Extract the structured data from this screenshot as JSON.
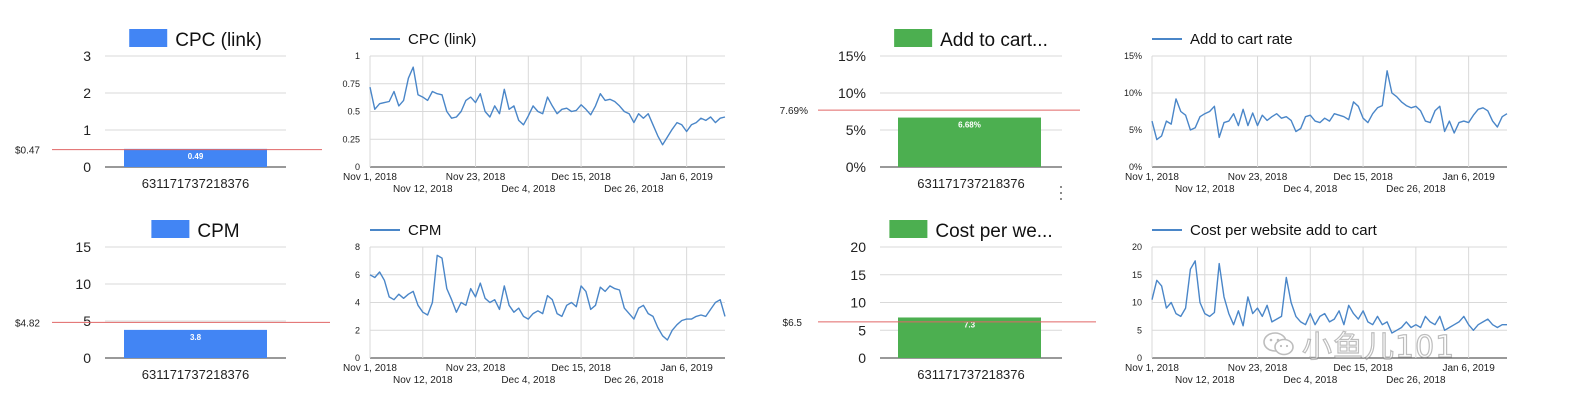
{
  "colors": {
    "blue": "#4285f4",
    "green": "#4caf50",
    "line": "#4a86c8",
    "ref": "#e06666",
    "grid": "#d9d9d9",
    "axis": "#333333"
  },
  "watermark": "小鱼儿101",
  "date_ticks": [
    "Nov 1, 2018",
    "Nov 12, 2018",
    "Nov 23, 2018",
    "Dec 4, 2018",
    "Dec 15, 2018",
    "Dec 26, 2018",
    "Jan 6, 2019"
  ],
  "chart_data": [
    {
      "type": "bar",
      "title": "CPC (link)",
      "legend": "CPC (link)",
      "categories": [
        "631171737218376"
      ],
      "values": [
        0.49
      ],
      "data_label": "0.49",
      "ylim": [
        0,
        3
      ],
      "yticks": [
        "0",
        "1",
        "2",
        "3"
      ],
      "reference": {
        "value": 0.47,
        "label": "$0.47"
      }
    },
    {
      "type": "line",
      "title": "CPC (link)",
      "legend": "CPC (link)",
      "ylim": [
        0,
        1
      ],
      "yticks": [
        "0",
        "0.25",
        "0.5",
        "0.75",
        "1"
      ],
      "x_start": "2018-11-01",
      "x_end": "2019-01-14",
      "values": [
        0.72,
        0.52,
        0.57,
        0.58,
        0.59,
        0.68,
        0.55,
        0.6,
        0.8,
        0.9,
        0.65,
        0.63,
        0.6,
        0.68,
        0.66,
        0.65,
        0.5,
        0.44,
        0.45,
        0.5,
        0.6,
        0.63,
        0.58,
        0.66,
        0.5,
        0.45,
        0.55,
        0.48,
        0.7,
        0.52,
        0.55,
        0.42,
        0.38,
        0.46,
        0.55,
        0.5,
        0.48,
        0.63,
        0.55,
        0.48,
        0.52,
        0.53,
        0.5,
        0.51,
        0.56,
        0.52,
        0.47,
        0.55,
        0.66,
        0.6,
        0.61,
        0.59,
        0.55,
        0.5,
        0.48,
        0.4,
        0.48,
        0.44,
        0.48,
        0.38,
        0.28,
        0.2,
        0.27,
        0.34,
        0.4,
        0.38,
        0.32,
        0.38,
        0.4,
        0.44,
        0.42,
        0.45,
        0.4,
        0.44,
        0.45
      ]
    },
    {
      "type": "bar",
      "title": "Add to cart...",
      "legend": "Add to cart...",
      "categories": [
        "631171737218376"
      ],
      "values": [
        6.68
      ],
      "data_label": "6.68%",
      "ylim": [
        0,
        15
      ],
      "yticks": [
        "0%",
        "5%",
        "10%",
        "15%"
      ],
      "reference": {
        "value": 7.69,
        "label": "7.69%"
      }
    },
    {
      "type": "line",
      "title": "Add to cart rate",
      "legend": "Add to cart rate",
      "ylim": [
        0,
        15
      ],
      "yticks": [
        "0%",
        "5%",
        "10%",
        "15%"
      ],
      "x_start": "2018-11-01",
      "x_end": "2019-01-14",
      "values": [
        6.2,
        3.7,
        4.2,
        6.2,
        5.8,
        9.2,
        7.5,
        7.0,
        5.0,
        5.3,
        6.8,
        7.2,
        7.5,
        8.2,
        4.0,
        6.0,
        6.2,
        7.2,
        5.6,
        7.8,
        5.6,
        7.3,
        5.6,
        7.0,
        6.3,
        6.8,
        7.2,
        6.6,
        6.8,
        6.3,
        4.8,
        5.2,
        6.8,
        7.0,
        6.2,
        6.0,
        6.6,
        6.2,
        7.2,
        7.0,
        6.8,
        6.4,
        8.8,
        8.2,
        6.6,
        6.0,
        7.2,
        8.0,
        8.3,
        13.0,
        10.0,
        9.5,
        8.8,
        8.3,
        8.0,
        8.2,
        7.6,
        6.2,
        6.0,
        7.6,
        8.2,
        4.8,
        6.2,
        4.6,
        6.0,
        6.2,
        6.0,
        7.0,
        7.8,
        8.0,
        7.6,
        6.2,
        5.4,
        6.8,
        7.2
      ]
    },
    {
      "type": "bar",
      "title": "CPM",
      "legend": "CPM",
      "categories": [
        "631171737218376"
      ],
      "values": [
        3.8
      ],
      "data_label": "3.8",
      "ylim": [
        0,
        15
      ],
      "yticks": [
        "0",
        "5",
        "10",
        "15"
      ],
      "reference": {
        "value": 4.82,
        "label": "$4.82"
      }
    },
    {
      "type": "line",
      "title": "CPM",
      "legend": "CPM",
      "ylim": [
        0,
        8
      ],
      "yticks": [
        "0",
        "2",
        "4",
        "6",
        "8"
      ],
      "x_start": "2018-11-01",
      "x_end": "2019-01-14",
      "values": [
        6.0,
        5.8,
        6.2,
        5.6,
        4.4,
        4.2,
        4.6,
        4.3,
        4.6,
        4.8,
        3.8,
        3.3,
        3.1,
        4.0,
        7.4,
        7.2,
        5.0,
        4.2,
        3.3,
        4.0,
        3.8,
        5.0,
        4.4,
        5.4,
        4.3,
        4.0,
        4.2,
        3.5,
        5.2,
        3.8,
        3.3,
        3.6,
        3.0,
        2.8,
        3.2,
        3.4,
        3.2,
        4.5,
        4.2,
        3.2,
        3.0,
        3.8,
        4.0,
        3.7,
        5.2,
        4.8,
        3.5,
        3.8,
        5.1,
        4.8,
        5.2,
        5.0,
        4.9,
        3.6,
        3.2,
        2.8,
        3.6,
        3.8,
        3.2,
        3.0,
        2.2,
        1.6,
        1.3,
        2.0,
        2.4,
        2.7,
        2.8,
        2.8,
        3.0,
        3.1,
        3.0,
        3.5,
        4.0,
        4.2,
        3.0
      ]
    },
    {
      "type": "bar",
      "title": "Cost per we...",
      "legend": "Cost per we...",
      "categories": [
        "631171737218376"
      ],
      "values": [
        7.3
      ],
      "data_label": "7.3",
      "ylim": [
        0,
        20
      ],
      "yticks": [
        "0",
        "5",
        "10",
        "15",
        "20"
      ],
      "reference": {
        "value": 6.5,
        "label": "$6.5"
      }
    },
    {
      "type": "line",
      "title": "Cost per website add to cart",
      "legend": "Cost per website add to cart",
      "ylim": [
        0,
        20
      ],
      "yticks": [
        "0",
        "5",
        "10",
        "15",
        "20"
      ],
      "x_start": "2018-11-01",
      "x_end": "2019-01-14",
      "values": [
        10.5,
        14.0,
        13.0,
        9.0,
        10.0,
        8.0,
        7.5,
        9.0,
        16.0,
        17.5,
        10.0,
        8.0,
        7.5,
        8.2,
        17.0,
        11.0,
        8.0,
        6.0,
        8.5,
        5.8,
        11.0,
        8.0,
        9.0,
        7.5,
        9.5,
        6.5,
        7.0,
        7.5,
        14.5,
        10.0,
        7.5,
        6.5,
        6.0,
        8.0,
        6.0,
        7.5,
        8.0,
        6.5,
        7.0,
        8.5,
        6.0,
        9.5,
        8.0,
        7.0,
        8.5,
        6.5,
        6.0,
        7.5,
        6.0,
        6.5,
        4.5,
        5.0,
        5.5,
        6.5,
        5.5,
        6.0,
        5.5,
        7.5,
        6.5,
        6.0,
        7.5,
        5.0,
        5.5,
        6.0,
        6.5,
        7.5,
        6.0,
        5.0,
        6.0,
        6.5,
        7.0,
        6.0,
        5.5,
        6.0,
        6.0
      ]
    }
  ]
}
